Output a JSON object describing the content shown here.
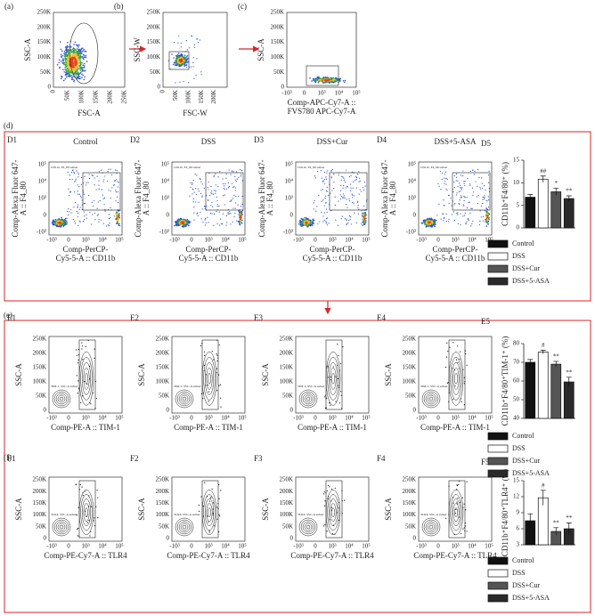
{
  "top": [
    {
      "label": "(a)",
      "xlabel": [
        "FSC-A"
      ],
      "ylabel": "SSC-A",
      "xticks": [
        "0",
        "50K",
        "100K",
        "150K",
        "200K",
        "250K"
      ],
      "yticks": [
        "0",
        "50K",
        "100K",
        "150K",
        "200K",
        "250K"
      ]
    },
    {
      "label": "(b)",
      "xlabel": [
        "FSC-W"
      ],
      "ylabel": "SSC-W",
      "xticks": [
        "0",
        "50K",
        "100K",
        "150K",
        "200K"
      ],
      "yticks": [
        "0",
        "50K",
        "100K",
        "150K",
        "200K",
        "250K"
      ]
    },
    {
      "label": "(c)",
      "xlabel": [
        "Comp-APC-Cy7-A ::",
        "FVS780 APC-Cy7-A"
      ],
      "ylabel": "SSC-A",
      "xticks": [
        "-10³",
        "0",
        "10³",
        "10⁴",
        "10⁵"
      ],
      "yticks": [
        "0",
        "50K",
        "100K",
        "150K",
        "200K",
        "250K"
      ]
    }
  ],
  "rows": [
    {
      "label": "(d)",
      "bar_label": "D5",
      "xlabel": [
        "Comp-PerCP-",
        "Cy5-5-A :: CD11b"
      ],
      "ylabel": [
        "Comp-Alexa Fluor 647-",
        "A :: F4_80"
      ],
      "xticks": [
        "-10³",
        "0",
        "10³",
        "10⁴",
        "10⁵"
      ],
      "yticks": [
        "-10³",
        "0",
        "10³",
        "10⁴",
        "10⁵"
      ],
      "panels": [
        {
          "label": "D1",
          "title": "Control",
          "gate": "CD11b, F4_80 subset"
        },
        {
          "label": "D2",
          "title": "DSS",
          "gate": "CD11b, F4_80 subset"
        },
        {
          "label": "D3",
          "title": "DSS+Cur",
          "gate": "CD11b, F4_80 subset"
        },
        {
          "label": "D4",
          "title": "DSS+5-ASA",
          "gate": "CD11b, F4_80 subset"
        }
      ]
    },
    {
      "label": "(e)",
      "bar_label": "E5",
      "xlabel": [
        "Comp-PE-A :: TIM-1"
      ],
      "ylabel": [
        "SSC-A"
      ],
      "xticks": [
        "-10³",
        "0",
        "10³",
        "10⁴",
        "10⁵"
      ],
      "yticks": [
        "0",
        "50K",
        "100K",
        "150K",
        "200K",
        "250K"
      ],
      "panels": [
        {
          "label": "E1",
          "gate": "TIM-1, SSC-A subset"
        },
        {
          "label": "E2",
          "gate": "TIM-1, SSC-A subset"
        },
        {
          "label": "E3",
          "gate": "TIM-1, SSC-A subset"
        },
        {
          "label": "E4",
          "gate": "TIM-1, SSC-A subset"
        }
      ]
    },
    {
      "label": "(f)",
      "bar_label": "F5",
      "xlabel": [
        "Comp-PE-Cy7-A :: TLR4"
      ],
      "ylabel": [
        "SSC-A"
      ],
      "xticks": [
        "-10³",
        "0",
        "10³",
        "10⁴",
        "10⁵"
      ],
      "yticks": [
        "0",
        "50K",
        "100K",
        "150K",
        "200K",
        "250K"
      ],
      "panels": [
        {
          "label": "F1",
          "gate": "TLR4, SSC-A subset"
        },
        {
          "label": "F2",
          "gate": "TLR4, SSC-A subset"
        },
        {
          "label": "F3",
          "gate": "TLR4, SSC-A subset"
        },
        {
          "label": "F4",
          "gate": "TLR4, SSC-A subset"
        }
      ]
    }
  ],
  "chart_data": [
    {
      "type": "bar",
      "ylabel": "CD11b⁺F4/80⁺ (%)",
      "categories": [
        "Control",
        "DSS",
        "DSS+Cur",
        "DSS+5-ASA"
      ],
      "values": [
        6.8,
        10.8,
        8,
        6.5
      ],
      "errors": [
        0.6,
        0.7,
        0.8,
        0.6
      ],
      "annotations": [
        null,
        "##",
        "*",
        "**"
      ],
      "colors": [
        "#111111",
        "#ffffff",
        "#555555",
        "#2a2a2a"
      ],
      "ylim": [
        0,
        15
      ],
      "yticks": [
        0,
        5,
        10,
        15
      ]
    },
    {
      "type": "bar",
      "ylabel": "CD11b⁺F4/80⁺TIM-1⁺ (%)",
      "categories": [
        "Control",
        "DSS",
        "DSS+Cur",
        "DSS+5-ASA"
      ],
      "values": [
        70,
        75.5,
        69,
        59.5
      ],
      "errors": [
        1.5,
        1,
        1.5,
        2.5
      ],
      "annotations": [
        null,
        "#",
        "**",
        "**"
      ],
      "colors": [
        "#111111",
        "#ffffff",
        "#555555",
        "#2a2a2a"
      ],
      "ylim": [
        40,
        80
      ],
      "yticks": [
        40,
        50,
        60,
        70,
        80
      ]
    },
    {
      "type": "bar",
      "ylabel": "CD11b⁺F4/80⁺TLR4⁺ (%)",
      "categories": [
        "Control",
        "DSS",
        "DSS+Cur",
        "DSS+5-ASA"
      ],
      "values": [
        7.5,
        11.8,
        5.5,
        6
      ],
      "errors": [
        1.3,
        1.4,
        0.7,
        1.1
      ],
      "annotations": [
        null,
        "#",
        "**",
        "**"
      ],
      "colors": [
        "#111111",
        "#ffffff",
        "#555555",
        "#2a2a2a"
      ],
      "ylim": [
        3,
        15
      ],
      "yticks": [
        3,
        6,
        9,
        12,
        15
      ]
    }
  ]
}
